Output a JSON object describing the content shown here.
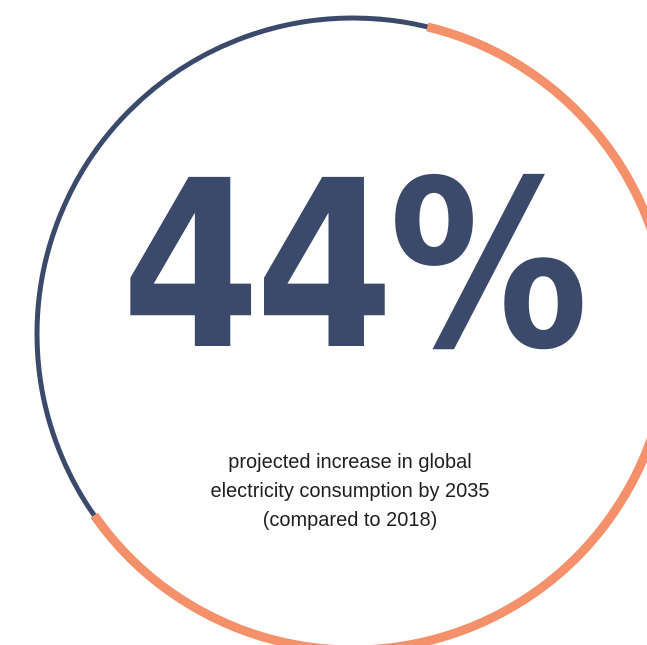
{
  "stat": {
    "value": "44%",
    "caption_lines": [
      "projected increase in global",
      "electricity consumption by 2035",
      "(compared to 2018)"
    ]
  },
  "ring": {
    "accent_color": "#f4916a",
    "base_color": "#3b4a6b",
    "accent_fraction": 0.615
  }
}
